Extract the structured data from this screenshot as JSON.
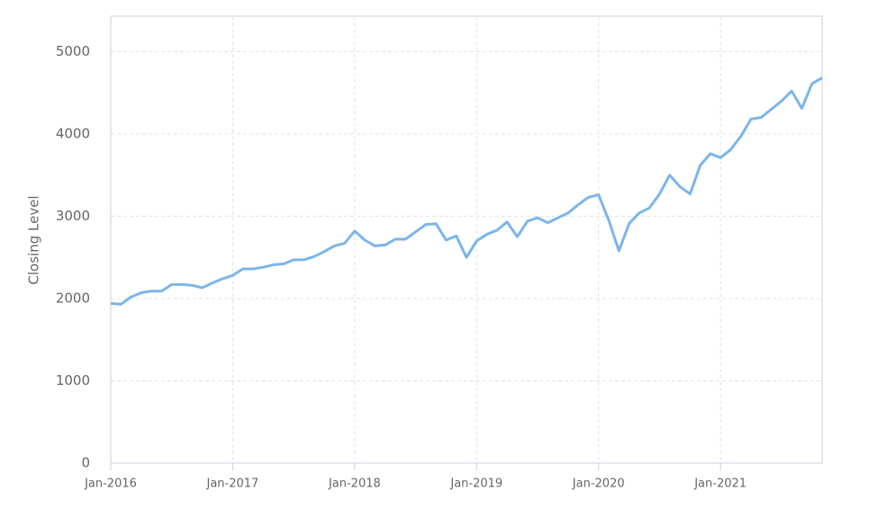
{
  "chart_data": {
    "type": "line",
    "y_label": "Closing Level",
    "x": [
      "2016-01",
      "2016-02",
      "2016-03",
      "2016-04",
      "2016-05",
      "2016-06",
      "2016-07",
      "2016-08",
      "2016-09",
      "2016-10",
      "2016-11",
      "2016-12",
      "2017-01",
      "2017-02",
      "2017-03",
      "2017-04",
      "2017-05",
      "2017-06",
      "2017-07",
      "2017-08",
      "2017-09",
      "2017-10",
      "2017-11",
      "2017-12",
      "2018-01",
      "2018-02",
      "2018-03",
      "2018-04",
      "2018-05",
      "2018-06",
      "2018-07",
      "2018-08",
      "2018-09",
      "2018-10",
      "2018-11",
      "2018-12",
      "2019-01",
      "2019-02",
      "2019-03",
      "2019-04",
      "2019-05",
      "2019-06",
      "2019-07",
      "2019-08",
      "2019-09",
      "2019-10",
      "2019-11",
      "2019-12",
      "2020-01",
      "2020-02",
      "2020-03",
      "2020-04",
      "2020-05",
      "2020-06",
      "2020-07",
      "2020-08",
      "2020-09",
      "2020-10",
      "2020-11",
      "2020-12",
      "2021-01",
      "2021-02",
      "2021-03",
      "2021-04",
      "2021-05",
      "2021-06",
      "2021-07",
      "2021-08",
      "2021-09",
      "2021-10",
      "2021-11"
    ],
    "values": [
      1940,
      1930,
      2020,
      2070,
      2090,
      2090,
      2170,
      2170,
      2160,
      2130,
      2190,
      2240,
      2280,
      2360,
      2360,
      2380,
      2410,
      2420,
      2470,
      2470,
      2510,
      2570,
      2640,
      2670,
      2820,
      2710,
      2640,
      2650,
      2720,
      2720,
      2810,
      2900,
      2910,
      2710,
      2760,
      2500,
      2700,
      2780,
      2830,
      2930,
      2750,
      2940,
      2980,
      2920,
      2980,
      3040,
      3140,
      3230,
      3260,
      2950,
      2580,
      2910,
      3040,
      3100,
      3270,
      3500,
      3360,
      3270,
      3620,
      3760,
      3710,
      3810,
      3970,
      4180,
      4200,
      4300,
      4400,
      4520,
      4310,
      4610,
      4680
    ],
    "color": "#7cb5ec",
    "xlim": [
      "2016-01",
      "2021-11"
    ],
    "xticks": [
      {
        "value": "2016-01",
        "label": "Jan-2016"
      },
      {
        "value": "2017-01",
        "label": "Jan-2017"
      },
      {
        "value": "2018-01",
        "label": "Jan-2018"
      },
      {
        "value": "2019-01",
        "label": "Jan-2019"
      },
      {
        "value": "2020-01",
        "label": "Jan-2020"
      },
      {
        "value": "2021-01",
        "label": "Jan-2021"
      }
    ],
    "ylim": [
      0,
      5430
    ],
    "yticks": [
      0,
      1000,
      2000,
      3000,
      4000,
      5000
    ],
    "grid": true
  }
}
